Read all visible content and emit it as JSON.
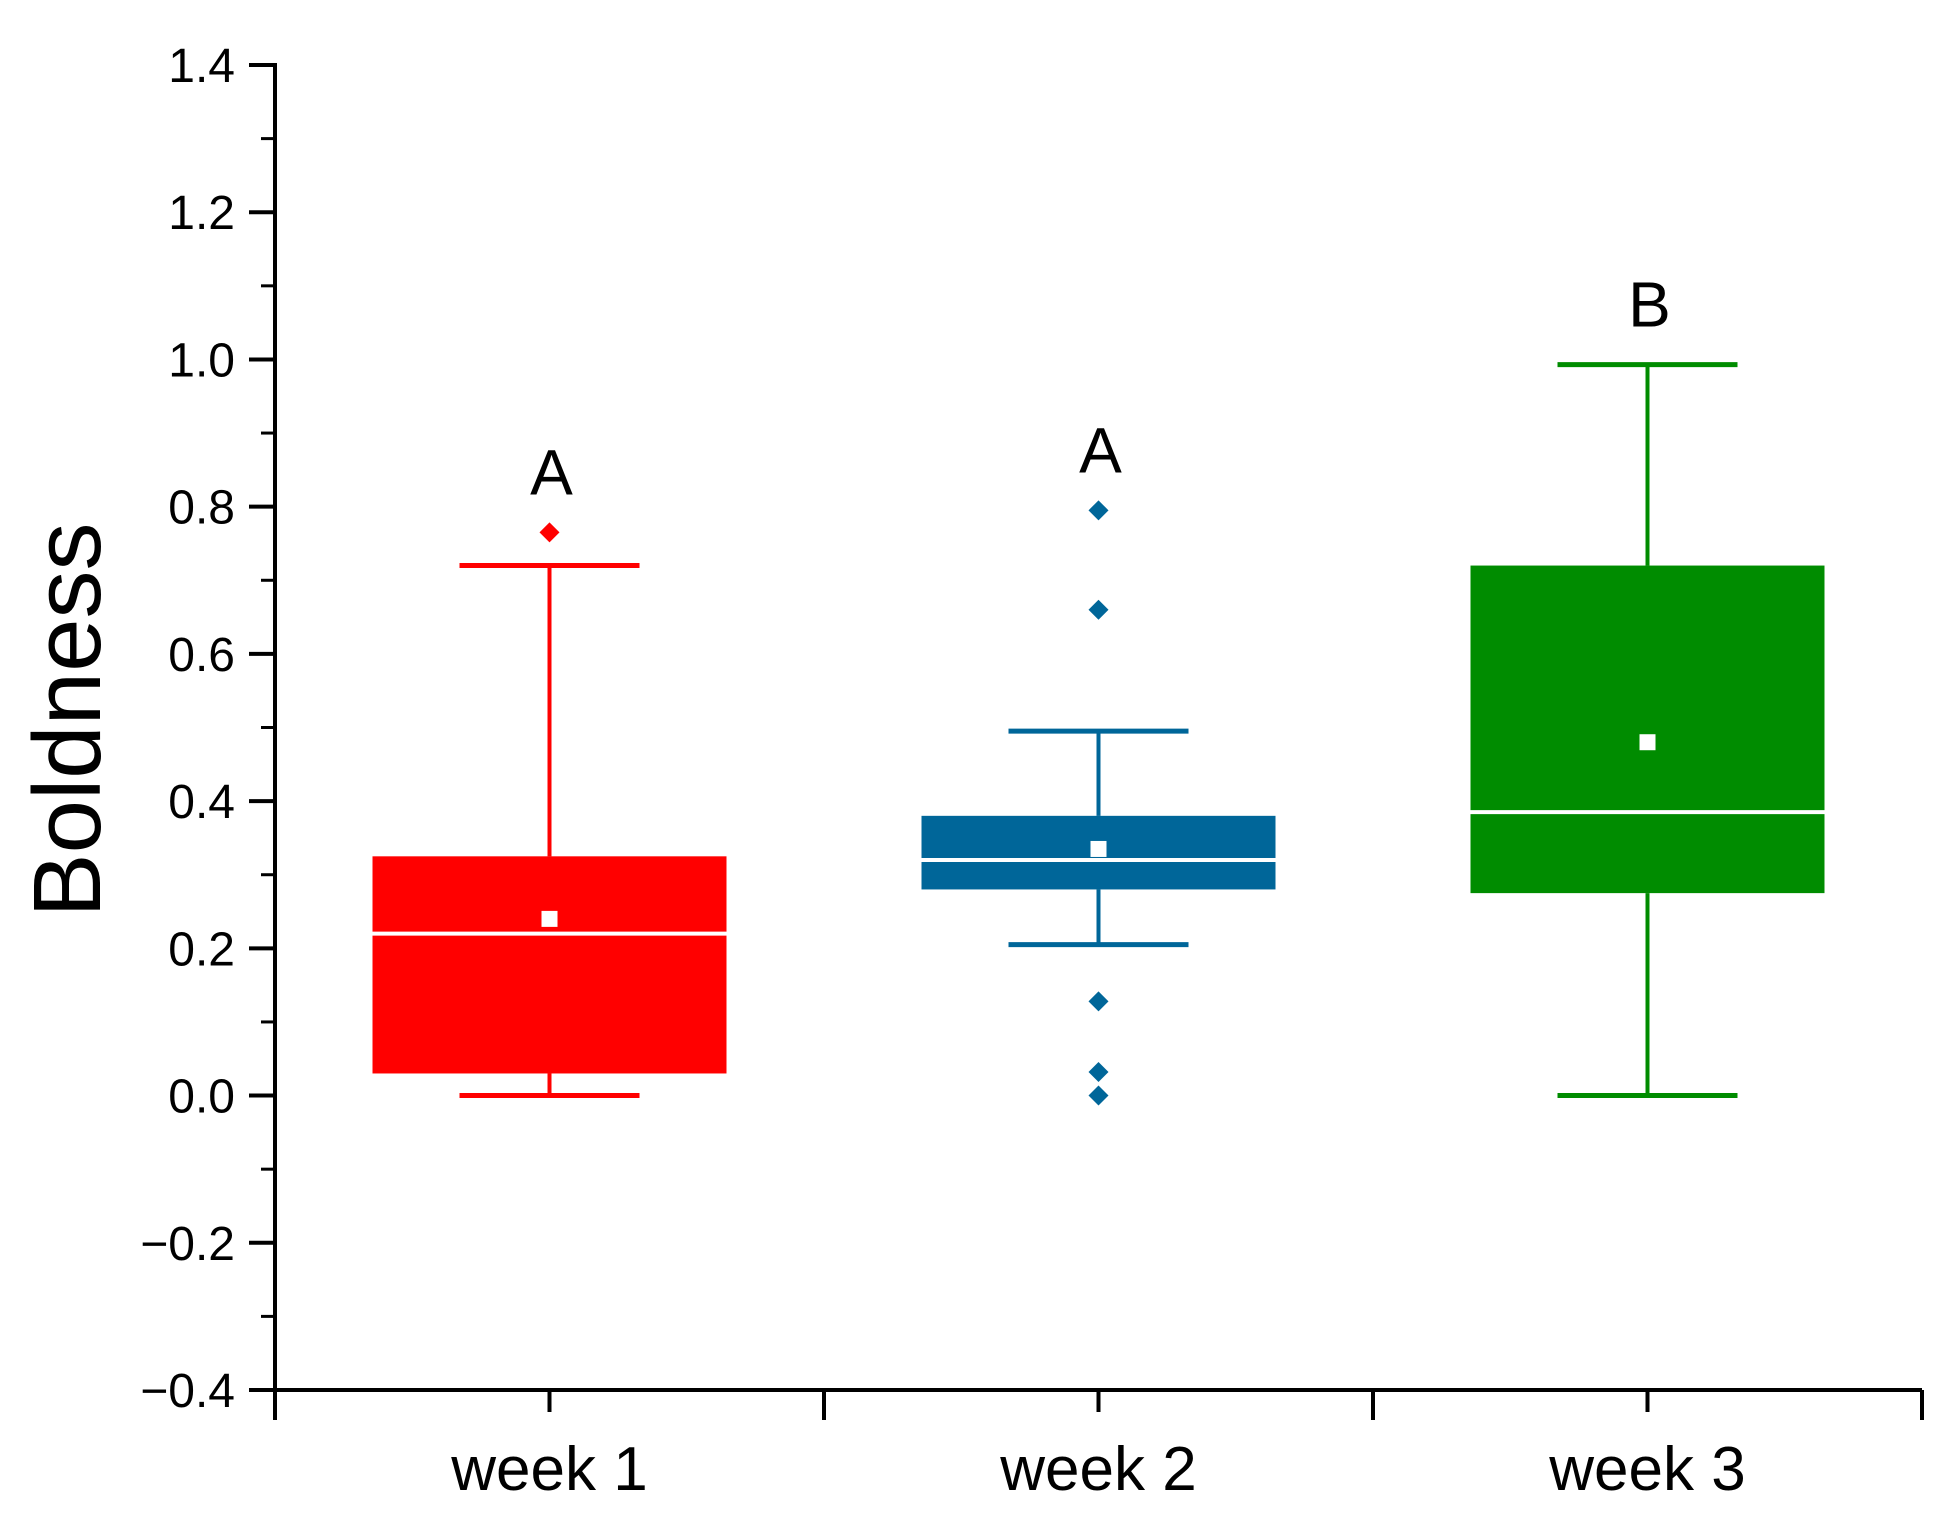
{
  "chart_data": {
    "type": "box",
    "title": "",
    "xlabel": "",
    "ylabel": "Boldness",
    "ylim": [
      -0.4,
      1.4
    ],
    "yticks": [
      -0.4,
      -0.2,
      0.0,
      0.2,
      0.4,
      0.6,
      0.8,
      1.0,
      1.2,
      1.4
    ],
    "ytick_labels": [
      "−0.4",
      "−0.2",
      "0.0",
      "0.2",
      "0.4",
      "0.6",
      "0.8",
      "1.0",
      "1.2",
      "1.4"
    ],
    "categories": [
      "week 1",
      "week 2",
      "week 3"
    ],
    "grid": false,
    "legend": "none",
    "boxes": [
      {
        "category": "week 1",
        "color": "#ff0000",
        "whisker_low": 0.0,
        "q1": 0.03,
        "median": 0.22,
        "q3": 0.325,
        "whisker_high": 0.72,
        "mean": 0.24,
        "outliers": [
          0.765
        ],
        "group_letter": "A"
      },
      {
        "category": "week 2",
        "color": "#006699",
        "whisker_low": 0.205,
        "q1": 0.28,
        "median": 0.32,
        "q3": 0.38,
        "whisker_high": 0.495,
        "mean": 0.335,
        "outliers": [
          0.795,
          0.66,
          0.128,
          0.032,
          0.0
        ],
        "group_letter": "A"
      },
      {
        "category": "week 3",
        "color": "#008c00",
        "whisker_low": 0.0,
        "q1": 0.275,
        "median": 0.385,
        "q3": 0.72,
        "whisker_high": 0.993,
        "mean": 0.48,
        "outliers": [],
        "group_letter": "B"
      }
    ]
  }
}
